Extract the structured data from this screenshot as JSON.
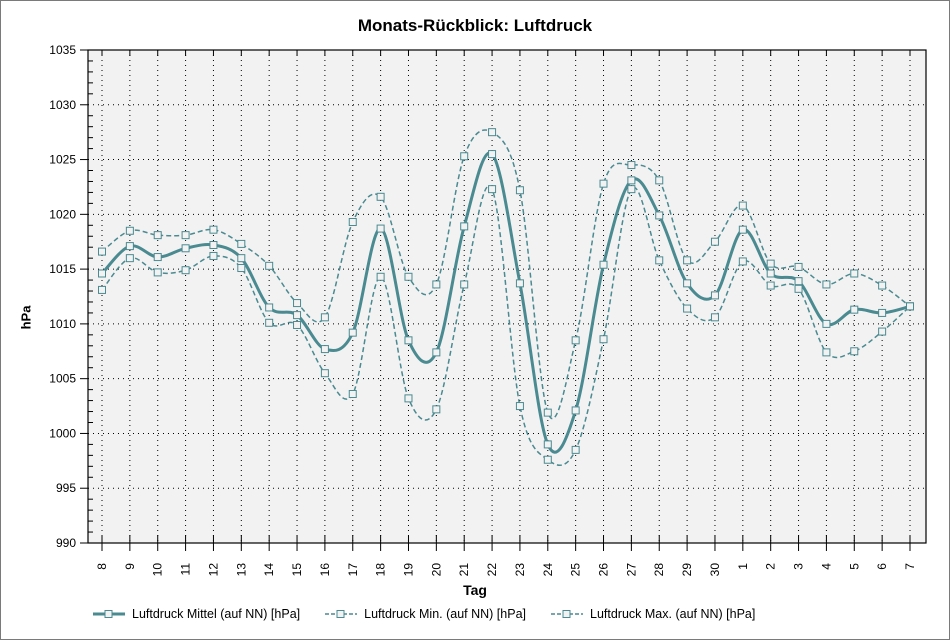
{
  "chart": {
    "title": "Monats-Rückblick: Luftdruck",
    "ylabel": "hPa",
    "xlabel": "Tag"
  },
  "legend": [
    {
      "label": "Luftdruck Mittel (auf NN) [hPa]",
      "style": "solid"
    },
    {
      "label": "Luftdruck Min. (auf NN) [hPa]",
      "style": "dashed"
    },
    {
      "label": "Luftdruck Max. (auf NN) [hPa]",
      "style": "dashed"
    }
  ],
  "colors": {
    "series": "#4a8a91",
    "plot_bg": "#f2f2f2",
    "grid": "#000000"
  },
  "chart_data": {
    "type": "line",
    "title": "Monats-Rückblick: Luftdruck",
    "xlabel": "Tag",
    "ylabel": "hPa",
    "ylim": [
      990,
      1035
    ],
    "yticks": [
      990,
      995,
      1000,
      1005,
      1010,
      1015,
      1020,
      1025,
      1030,
      1035
    ],
    "grid": true,
    "legend_position": "bottom",
    "categories": [
      "8",
      "9",
      "10",
      "11",
      "12",
      "13",
      "14",
      "15",
      "16",
      "17",
      "18",
      "19",
      "20",
      "21",
      "22",
      "23",
      "24",
      "25",
      "26",
      "27",
      "28",
      "29",
      "30",
      "1",
      "2",
      "3",
      "4",
      "5",
      "6",
      "7"
    ],
    "series": [
      {
        "name": "Luftdruck Mittel (auf NN) [hPa]",
        "style": "solid",
        "values": [
          1014.6,
          1017.1,
          1016.1,
          1016.9,
          1017.2,
          1016.0,
          1011.5,
          1010.8,
          1007.7,
          1009.2,
          1018.7,
          1008.5,
          1007.4,
          1018.9,
          1025.5,
          1013.7,
          999.0,
          1002.1,
          1015.4,
          1023.1,
          1019.9,
          1013.7,
          1012.6,
          1018.6,
          1014.6,
          1013.9,
          1010.0,
          1011.3,
          1011.0,
          1011.6
        ]
      },
      {
        "name": "Luftdruck Min. (auf NN) [hPa]",
        "style": "dashed",
        "values": [
          1013.1,
          1016.0,
          1014.7,
          1014.9,
          1016.2,
          1015.1,
          1010.1,
          1009.9,
          1005.5,
          1003.6,
          1014.3,
          1003.2,
          1002.2,
          1013.6,
          1022.3,
          1002.5,
          997.6,
          998.5,
          1008.6,
          1022.3,
          1015.8,
          1011.4,
          1010.6,
          1015.7,
          1013.5,
          1013.2,
          1007.4,
          1007.5,
          1009.3,
          1011.6
        ]
      },
      {
        "name": "Luftdruck Max. (auf NN) [hPa]",
        "style": "dashed",
        "values": [
          1016.6,
          1018.5,
          1018.1,
          1018.1,
          1018.6,
          1017.3,
          1015.3,
          1011.9,
          1010.6,
          1019.3,
          1021.6,
          1014.3,
          1013.6,
          1025.3,
          1027.5,
          1022.2,
          1001.9,
          1008.5,
          1022.8,
          1024.5,
          1023.1,
          1015.8,
          1017.5,
          1020.8,
          1015.5,
          1015.2,
          1013.6,
          1014.6,
          1013.5,
          1011.6
        ]
      }
    ]
  }
}
